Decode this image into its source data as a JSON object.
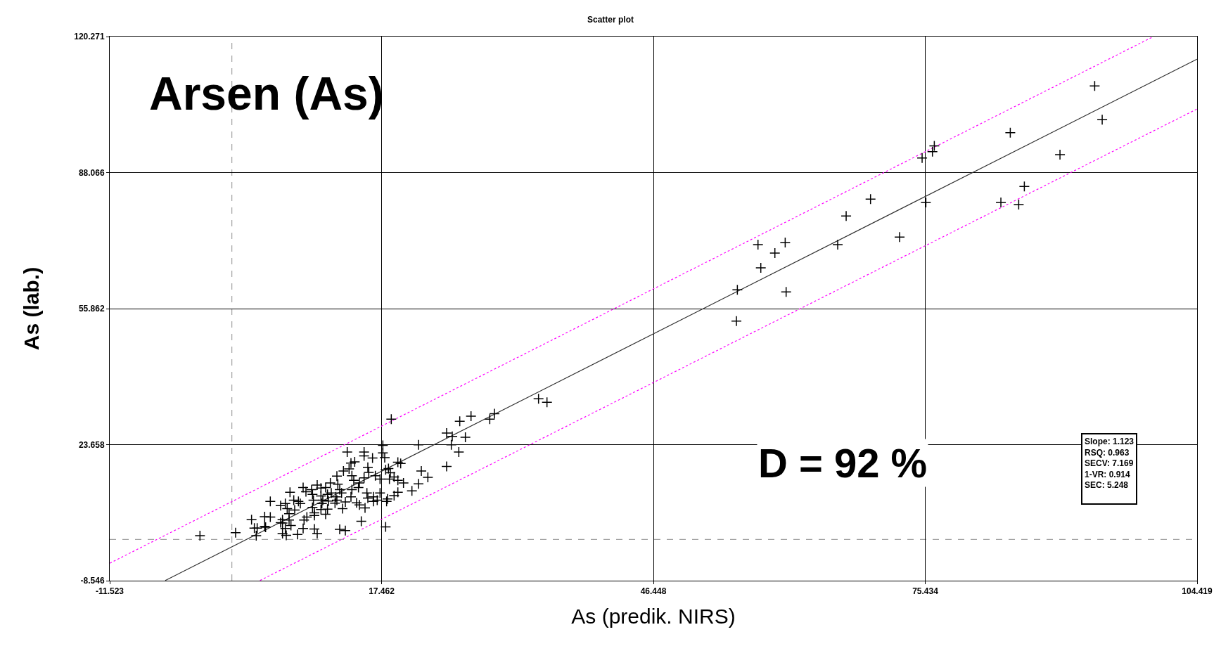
{
  "chart_data": {
    "type": "scatter",
    "title": "Scatter plot",
    "xlabel": "As (predik. NIRS)",
    "ylabel": "As (lab.)",
    "annotations": [
      "Arsen (As)",
      "D = 92 %",
      "Slope: 1.123\nRSQ: 0.963\nSECV: 7.169\n1-VR: 0.914\nSEC: 5.248"
    ],
    "xlim": [
      -11.523,
      104.419
    ],
    "ylim": [
      -8.546,
      120.271
    ],
    "xticks": [
      -11.523,
      17.462,
      46.448,
      75.434,
      104.419
    ],
    "yticks": [
      -8.546,
      23.658,
      55.862,
      88.066,
      120.271
    ],
    "grid": true,
    "ref_lines": [
      {
        "axis": "x",
        "value": 1.5,
        "color": "#a0a0a0",
        "line_style": "dashed"
      },
      {
        "axis": "y",
        "value": 1.2,
        "color": "#a0a0a0",
        "line_style": "dashed"
      }
    ],
    "series": [
      {
        "color": "#000000",
        "marker": "cross",
        "x": [
          -1.9,
          1.9,
          4.1,
          3.6,
          3.9,
          4.2,
          5.0,
          5.1,
          5.0,
          5.6,
          5.6,
          6.7,
          7.2,
          7.4,
          7.6,
          8.2,
          7.7,
          8.1,
          8.6,
          8.8,
          6.7,
          6.9,
          6.9,
          7.6,
          7.8,
          7.2,
          6.9,
          7.3,
          8.5,
          9.1,
          9.2,
          9.5,
          9.1,
          9.4,
          10.0,
          10.1,
          10.2,
          10.1,
          10.3,
          10.3,
          10.3,
          10.6,
          10.6,
          11.0,
          11.0,
          11.2,
          11.1,
          11.0,
          11.5,
          11.5,
          11.7,
          11.8,
          11.7,
          12.0,
          12.1,
          12.6,
          12.5,
          12.7,
          13.0,
          12.8,
          12.7,
          13.2,
          13.4,
          13.3,
          13.6,
          13.8,
          14.0,
          14.2,
          14.3,
          14.5,
          14.6,
          14.3,
          14.2,
          13.0,
          13.6,
          15.3,
          14.8,
          15.1,
          15.7,
          15.0,
          15.1,
          15.6,
          15.6,
          15.6,
          16.0,
          16.1,
          16.5,
          15.9,
          16.0,
          16.6,
          16.8,
          16.6,
          17.0,
          17.3,
          17.3,
          17.6,
          17.6,
          17.8,
          17.9,
          18.2,
          18.4,
          18.3,
          18.8,
          19.2,
          19.8,
          19.2,
          19.5,
          18.5,
          17.9,
          18.0,
          18.1,
          18.8,
          19.2,
          21.4,
          21.7,
          22.4,
          21.4,
          20.7,
          24.4,
          25.0,
          24.9,
          25.7,
          24.4,
          26.4,
          25.8,
          27.0,
          29.0,
          29.5,
          34.2,
          35.1,
          57.6,
          60.5,
          59.4,
          57.9,
          55.4,
          60.6,
          66.1,
          72.7,
          55.3,
          93.5,
          94.3,
          84.5,
          89.8,
          76.4,
          76.2,
          75.1,
          69.6,
          67.0,
          75.5,
          83.5,
          85.4,
          86.0
        ],
        "values": [
          2.1,
          2.8,
          2.1,
          5.9,
          3.9,
          3.9,
          4.3,
          4.1,
          6.6,
          6.5,
          10.2,
          9.2,
          9.7,
          8.5,
          7.3,
          8.2,
          12.4,
          10.5,
          10.2,
          9.7,
          5.2,
          5.9,
          5.1,
          5.8,
          4.5,
          3.8,
          2.6,
          2.2,
          2.4,
          3.8,
          5.8,
          6.5,
          13.5,
          12.5,
          13.0,
          11.9,
          10.5,
          8.8,
          7.5,
          6.9,
          3.7,
          2.6,
          14.1,
          13.4,
          11.5,
          10.5,
          9.7,
          8.3,
          7.2,
          13.5,
          11.9,
          10.3,
          8.4,
          14.6,
          12.2,
          11.3,
          9.8,
          10.5,
          13.0,
          14.3,
          16.2,
          12.2,
          17.4,
          8.5,
          10.1,
          21.9,
          17.9,
          19.3,
          16.3,
          15.2,
          19.6,
          13.0,
          11.3,
          3.6,
          3.3,
          5.5,
          9.9,
          9.4,
          8.7,
          13.5,
          14.6,
          15.8,
          21.9,
          21.0,
          18.3,
          17.1,
          20.5,
          12.2,
          11.0,
          11.3,
          16.3,
          10.2,
          10.5,
          15.5,
          12.2,
          23.5,
          21.7,
          20.6,
          17.7,
          18.0,
          17.0,
          15.5,
          16.0,
          15.2,
          14.6,
          19.5,
          19.2,
          29.7,
          4.2,
          10.2,
          10.8,
          11.6,
          12.4,
          23.6,
          17.4,
          15.9,
          14.4,
          12.7,
          26.4,
          25.6,
          23.6,
          21.9,
          18.5,
          25.4,
          29.2,
          30.4,
          29.7,
          31.0,
          34.5,
          33.7,
          71.0,
          71.5,
          69.0,
          65.5,
          60.3,
          59.8,
          71.0,
          72.8,
          52.9,
          108.6,
          100.6,
          97.5,
          92.3,
          94.4,
          93.0,
          91.5,
          81.8,
          77.8,
          81.0,
          81.0,
          80.5,
          84.8
        ]
      },
      {
        "type": "line",
        "color": "#303030",
        "line_style": "solid",
        "x": [
          -5.6,
          104.4
        ],
        "values": [
          -8.5,
          114.9
        ]
      },
      {
        "type": "line",
        "color": "#ff00ff",
        "line_style": "dotted",
        "x": [
          -11.5,
          99.7
        ],
        "values": [
          -4.4,
          120.2
        ]
      },
      {
        "type": "line",
        "color": "#ff00ff",
        "line_style": "dotted",
        "x": [
          4.5,
          104.4
        ],
        "values": [
          -8.5,
          103.1
        ]
      }
    ]
  }
}
